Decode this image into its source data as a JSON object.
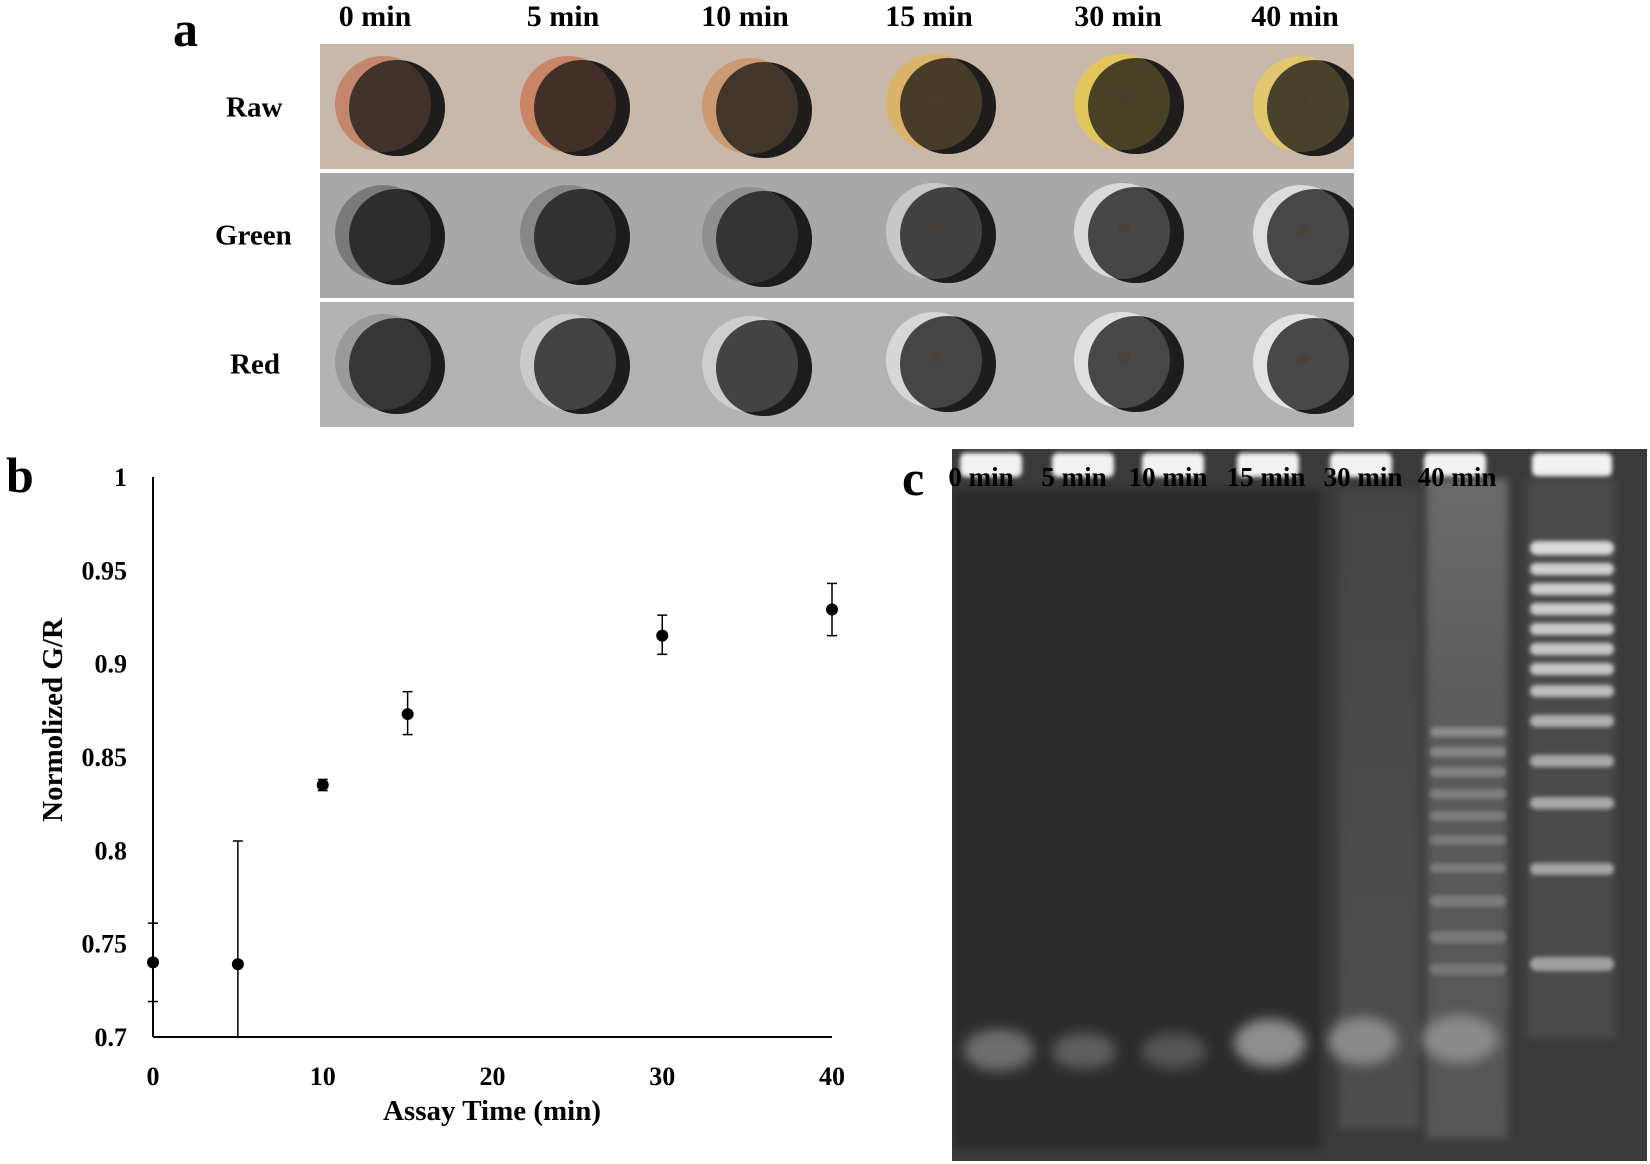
{
  "panel_a": {
    "letter": "a",
    "times": [
      "0 min",
      "5 min",
      "10 min",
      "15 min",
      "30 min",
      "40 min"
    ],
    "rows": [
      "Raw",
      "Green",
      "Red"
    ],
    "colors": {
      "raw": [
        "#c4876c",
        "#c98566",
        "#cb9a72",
        "#d9b46a",
        "#e2c55c",
        "#e1c870"
      ],
      "green": [
        "#7a7a7a",
        "#878787",
        "#8f8f8f",
        "#c8c8c8",
        "#dadada",
        "#dddddd"
      ],
      "red": [
        "#9a9a9a",
        "#cbcbcb",
        "#cecece",
        "#d7d7d7",
        "#e0e0e0",
        "#e3e3e3"
      ]
    }
  },
  "panel_b": {
    "letter": "b",
    "chart_data": {
      "type": "scatter",
      "xlabel": "Assay Time (min)",
      "ylabel": "Normolized G/R",
      "x_ticks": [
        "0",
        "10",
        "20",
        "30",
        "40"
      ],
      "y_ticks": [
        "0.7",
        "0.75",
        "0.8",
        "0.85",
        "0.9",
        "0.95",
        "1"
      ],
      "xlim": [
        0,
        40
      ],
      "ylim": [
        0.7,
        1
      ],
      "grid": false,
      "points": [
        {
          "x": 0,
          "y": 0.74,
          "err_low": 0.719,
          "err_high": 0.761
        },
        {
          "x": 5,
          "y": 0.739,
          "err_low": 0.7,
          "err_high": 0.805
        },
        {
          "x": 10,
          "y": 0.835,
          "err_low": 0.832,
          "err_high": 0.838
        },
        {
          "x": 15,
          "y": 0.873,
          "err_low": 0.862,
          "err_high": 0.885
        },
        {
          "x": 30,
          "y": 0.915,
          "err_low": 0.905,
          "err_high": 0.926
        },
        {
          "x": 40,
          "y": 0.929,
          "err_low": 0.915,
          "err_high": 0.943
        }
      ],
      "color": "#000000"
    }
  },
  "panel_c": {
    "letter": "c",
    "lanes": [
      "0 min",
      "5 min",
      "10 min",
      "15 min",
      "30 min",
      "40 min"
    ]
  }
}
